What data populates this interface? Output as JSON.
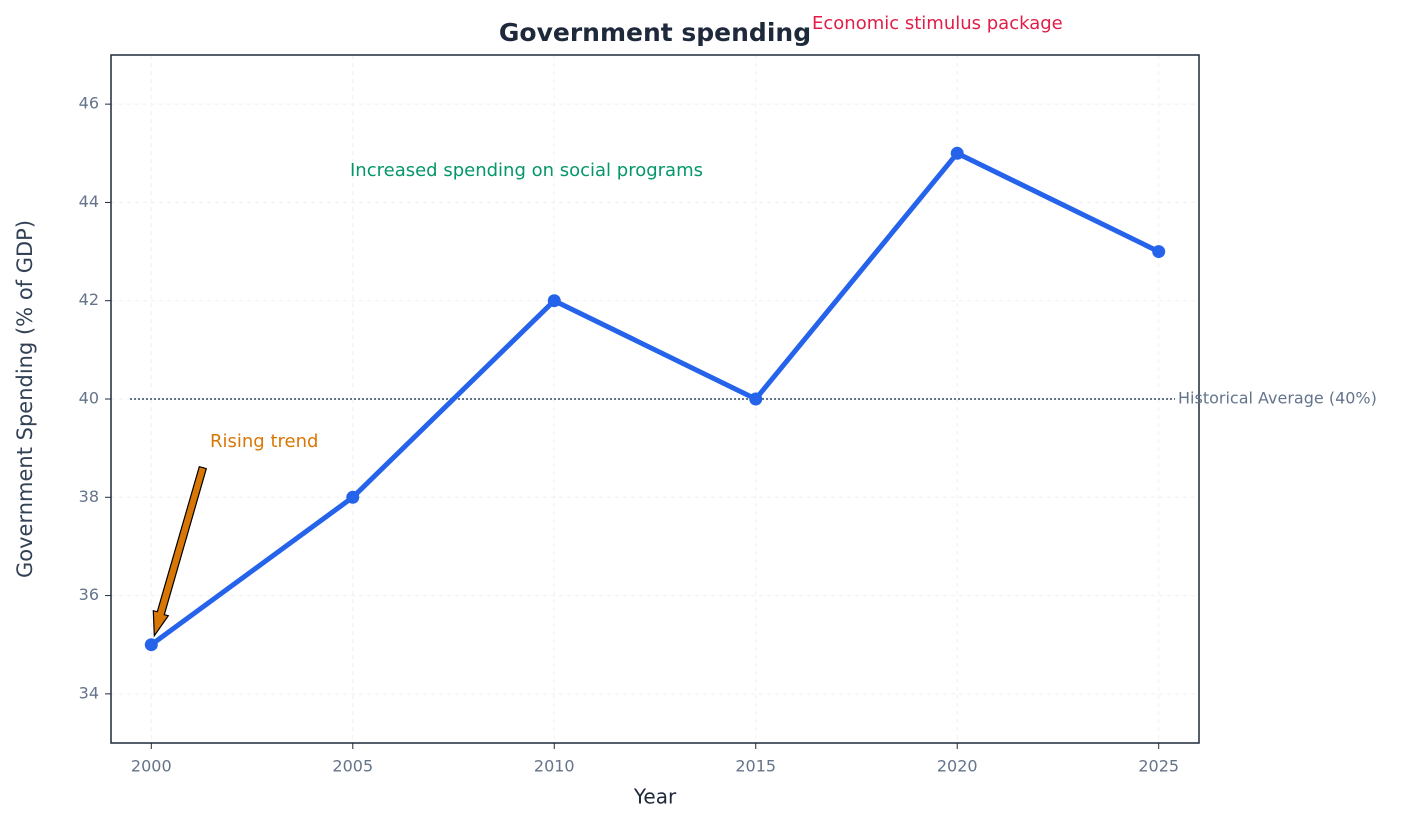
{
  "chart_data": {
    "type": "line",
    "title": "Government spending",
    "x_label": "Year",
    "y_label": "Government Spending (% of GDP)",
    "x": [
      2000,
      2005,
      2010,
      2015,
      2020,
      2025
    ],
    "series": [
      {
        "name": "Government Spending",
        "color": "#2563eb",
        "values": [
          35,
          38,
          42,
          40,
          45,
          43
        ]
      }
    ],
    "xlim": [
      1999,
      2026
    ],
    "xticks": [
      2000,
      2005,
      2010,
      2015,
      2020,
      2025
    ],
    "ylim": [
      33,
      47
    ],
    "yticks": [
      34,
      36,
      38,
      40,
      42,
      44,
      46
    ],
    "grid": true,
    "reference_line": {
      "value": 40,
      "label": "Historical Average (40%)",
      "color": "#64748b"
    },
    "annotations": [
      {
        "text": "Rising trend",
        "color": "#d97706"
      },
      {
        "text": "Increased spending on social programs",
        "color": "#059669"
      },
      {
        "text": "Economic stimulus package",
        "color": "#e11d48"
      }
    ]
  }
}
